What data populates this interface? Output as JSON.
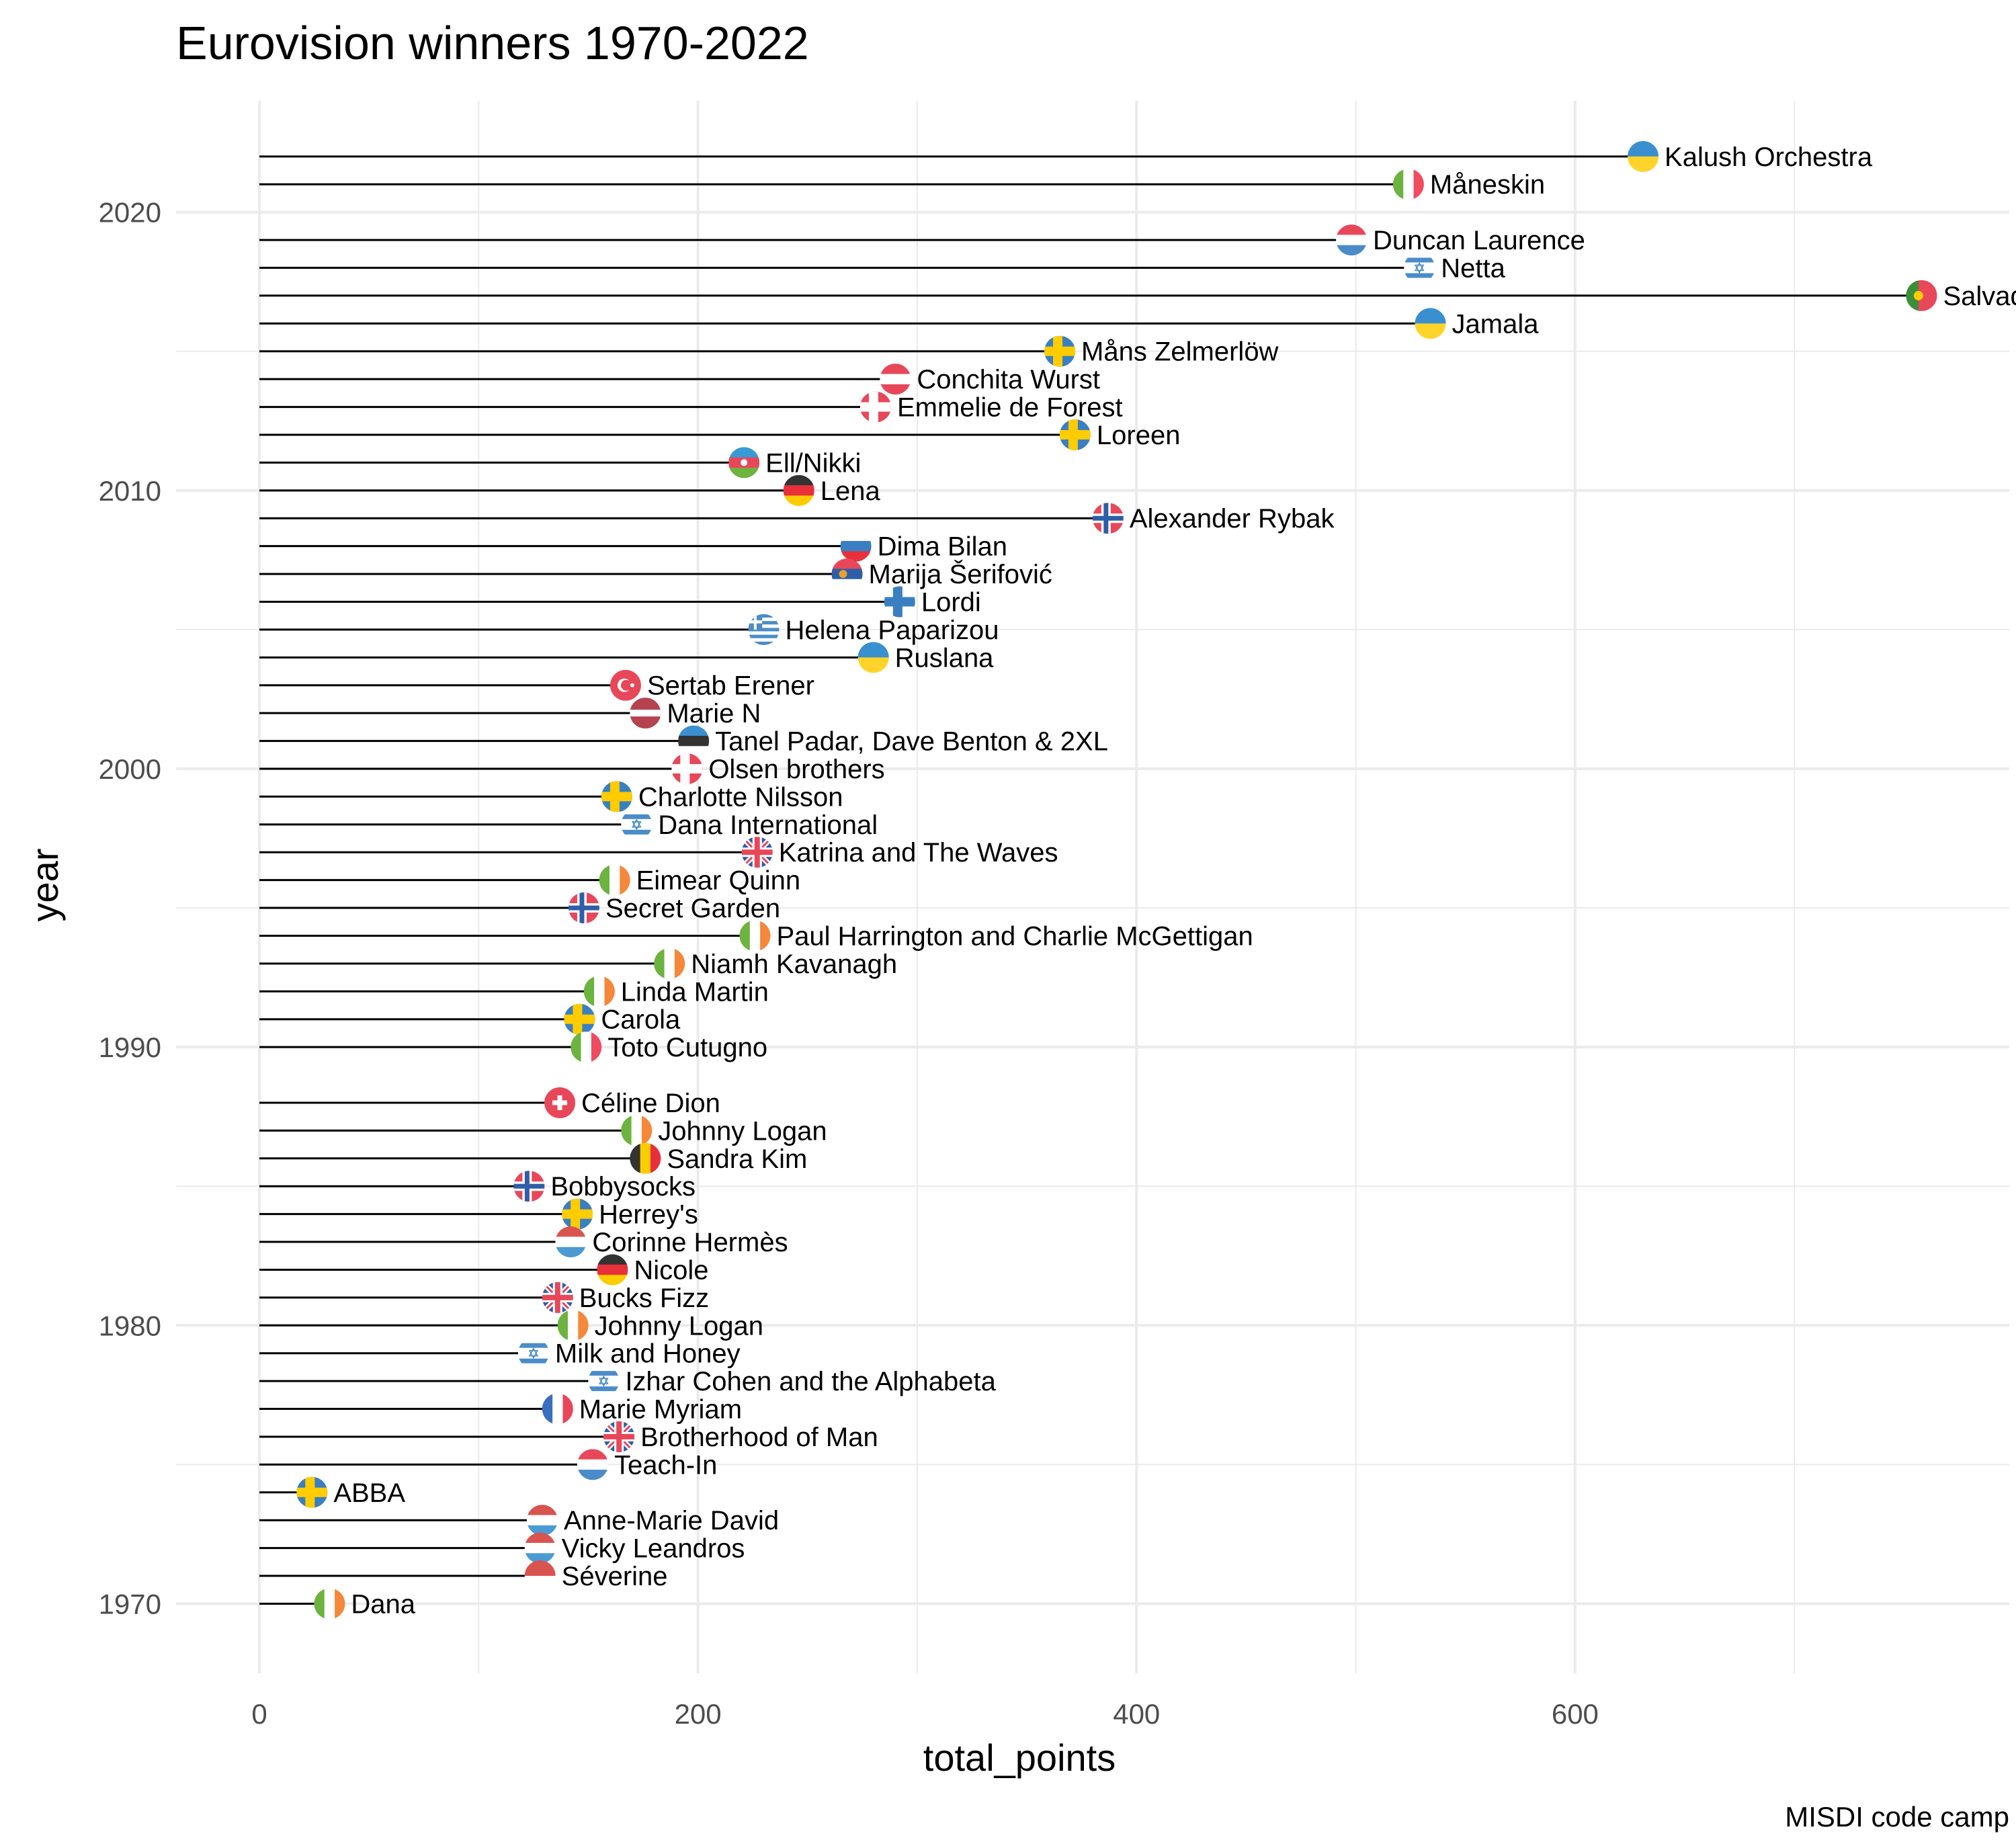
{
  "chart_data": {
    "type": "lollipop",
    "title": "Eurovision winners 1970-2022",
    "xlabel": "total_points",
    "ylabel": "year",
    "caption": "MISDI code camp",
    "xlim": [
      -38,
      798
    ],
    "ylim": [
      1967.5,
      2024
    ],
    "x_ticks": [
      0,
      200,
      400,
      600
    ],
    "y_ticks": [
      1970,
      1980,
      1990,
      2000,
      2010,
      2020
    ],
    "grid": true,
    "points": [
      {
        "year": 2022,
        "total_points": 631,
        "winner": "Kalush Orchestra",
        "flag": "ukraine"
      },
      {
        "year": 2021,
        "total_points": 524,
        "winner": "Måneskin",
        "flag": "italy"
      },
      {
        "year": 2019,
        "total_points": 498,
        "winner": "Duncan Laurence",
        "flag": "netherlands"
      },
      {
        "year": 2018,
        "total_points": 529,
        "winner": "Netta",
        "flag": "israel"
      },
      {
        "year": 2017,
        "total_points": 758,
        "winner": "Salvador Sobral",
        "flag": "portugal"
      },
      {
        "year": 2016,
        "total_points": 534,
        "winner": "Jamala",
        "flag": "ukraine"
      },
      {
        "year": 2015,
        "total_points": 365,
        "winner": "Måns Zelmerlöw",
        "flag": "sweden"
      },
      {
        "year": 2014,
        "total_points": 290,
        "winner": "Conchita Wurst",
        "flag": "austria"
      },
      {
        "year": 2013,
        "total_points": 281,
        "winner": "Emmelie de Forest",
        "flag": "denmark"
      },
      {
        "year": 2012,
        "total_points": 372,
        "winner": "Loreen",
        "flag": "sweden"
      },
      {
        "year": 2011,
        "total_points": 221,
        "winner": "Ell/Nikki",
        "flag": "azerbaijan"
      },
      {
        "year": 2010,
        "total_points": 246,
        "winner": "Lena",
        "flag": "germany"
      },
      {
        "year": 2009,
        "total_points": 387,
        "winner": "Alexander Rybak",
        "flag": "norway"
      },
      {
        "year": 2008,
        "total_points": 272,
        "winner": "Dima Bilan",
        "flag": "russia"
      },
      {
        "year": 2007,
        "total_points": 268,
        "winner": "Marija Šerifović",
        "flag": "serbia"
      },
      {
        "year": 2006,
        "total_points": 292,
        "winner": "Lordi",
        "flag": "finland"
      },
      {
        "year": 2005,
        "total_points": 230,
        "winner": "Helena Paparizou",
        "flag": "greece"
      },
      {
        "year": 2004,
        "total_points": 280,
        "winner": "Ruslana",
        "flag": "ukraine"
      },
      {
        "year": 2003,
        "total_points": 167,
        "winner": "Sertab Erener",
        "flag": "turkey"
      },
      {
        "year": 2002,
        "total_points": 176,
        "winner": "Marie N",
        "flag": "latvia"
      },
      {
        "year": 2001,
        "total_points": 198,
        "winner": "Tanel Padar, Dave Benton & 2XL",
        "flag": "estonia"
      },
      {
        "year": 2000,
        "total_points": 195,
        "winner": "Olsen brothers",
        "flag": "denmark"
      },
      {
        "year": 1999,
        "total_points": 163,
        "winner": "Charlotte Nilsson",
        "flag": "sweden"
      },
      {
        "year": 1998,
        "total_points": 172,
        "winner": "Dana International",
        "flag": "israel"
      },
      {
        "year": 1997,
        "total_points": 227,
        "winner": "Katrina and The Waves",
        "flag": "uk"
      },
      {
        "year": 1996,
        "total_points": 162,
        "winner": "Eimear Quinn",
        "flag": "ireland"
      },
      {
        "year": 1995,
        "total_points": 148,
        "winner": "Secret Garden",
        "flag": "norway"
      },
      {
        "year": 1994,
        "total_points": 226,
        "winner": "Paul Harrington and Charlie McGettigan",
        "flag": "ireland"
      },
      {
        "year": 1993,
        "total_points": 187,
        "winner": "Niamh Kavanagh",
        "flag": "ireland"
      },
      {
        "year": 1992,
        "total_points": 155,
        "winner": "Linda Martin",
        "flag": "ireland"
      },
      {
        "year": 1991,
        "total_points": 146,
        "winner": "Carola",
        "flag": "sweden"
      },
      {
        "year": 1990,
        "total_points": 149,
        "winner": "Toto Cutugno",
        "flag": "italy"
      },
      {
        "year": 1988,
        "total_points": 137,
        "winner": "Céline Dion",
        "flag": "switzerland"
      },
      {
        "year": 1987,
        "total_points": 172,
        "winner": "Johnny Logan",
        "flag": "ireland"
      },
      {
        "year": 1986,
        "total_points": 176,
        "winner": "Sandra Kim",
        "flag": "belgium"
      },
      {
        "year": 1985,
        "total_points": 123,
        "winner": "Bobbysocks",
        "flag": "norway"
      },
      {
        "year": 1984,
        "total_points": 145,
        "winner": "Herrey's",
        "flag": "sweden"
      },
      {
        "year": 1983,
        "total_points": 142,
        "winner": "Corinne Hermès",
        "flag": "luxembourg"
      },
      {
        "year": 1982,
        "total_points": 161,
        "winner": "Nicole",
        "flag": "germany"
      },
      {
        "year": 1981,
        "total_points": 136,
        "winner": "Bucks Fizz",
        "flag": "uk"
      },
      {
        "year": 1980,
        "total_points": 143,
        "winner": "Johnny Logan",
        "flag": "ireland"
      },
      {
        "year": 1979,
        "total_points": 125,
        "winner": "Milk and Honey",
        "flag": "israel"
      },
      {
        "year": 1978,
        "total_points": 157,
        "winner": "Izhar Cohen and the Alphabeta",
        "flag": "israel"
      },
      {
        "year": 1977,
        "total_points": 136,
        "winner": "Marie Myriam",
        "flag": "france"
      },
      {
        "year": 1976,
        "total_points": 164,
        "winner": "Brotherhood of Man",
        "flag": "uk"
      },
      {
        "year": 1975,
        "total_points": 152,
        "winner": "Teach-In",
        "flag": "netherlands"
      },
      {
        "year": 1974,
        "total_points": 24,
        "winner": "ABBA",
        "flag": "sweden"
      },
      {
        "year": 1973,
        "total_points": 129,
        "winner": "Anne-Marie David",
        "flag": "luxembourg"
      },
      {
        "year": 1972,
        "total_points": 128,
        "winner": "Vicky Leandros",
        "flag": "luxembourg"
      },
      {
        "year": 1971,
        "total_points": 128,
        "winner": "Séverine",
        "flag": "monaco"
      },
      {
        "year": 1970,
        "total_points": 32,
        "winner": "Dana",
        "flag": "ireland"
      }
    ]
  }
}
